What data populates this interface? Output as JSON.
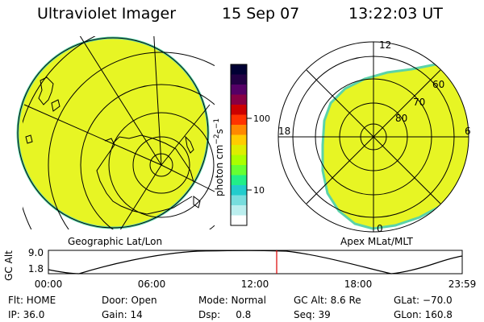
{
  "header": {
    "instrument": "Ultraviolet Imager",
    "date": "15 Sep 07",
    "time": "13:22:03 UT"
  },
  "panels": {
    "left_caption": "Geographic Lat/Lon",
    "right_caption": "Apex MLat/MLT"
  },
  "colorbar": {
    "unit_label": "photon cm",
    "unit_exp1": "−2",
    "unit_mid": "s",
    "unit_exp2": "−1",
    "tick_100": "100",
    "tick_10": "10",
    "scale": "log",
    "colors": [
      "#000033",
      "#220044",
      "#550066",
      "#880044",
      "#cc0000",
      "#ff3300",
      "#ff8800",
      "#ffcc00",
      "#ddee00",
      "#aaff00",
      "#66ff33",
      "#22ee88",
      "#22cccc",
      "#77dddd",
      "#bbeeee",
      "#ffffff"
    ],
    "fill_color": "#e7f524",
    "edge_color": "#5bd3a8"
  },
  "polar_labels": {
    "mlt_12": "12",
    "mlt_18": "18",
    "mlt_6": "6",
    "mlt_0": "0",
    "lat_60": "60",
    "lat_70": "70",
    "lat_80": "80"
  },
  "altitude_plot": {
    "ylabel": "GC Alt",
    "ytick_top": "9.0",
    "ytick_bottom": "1.8",
    "xticks": [
      "00:00",
      "06:00",
      "12:00",
      "18:00",
      "23:59"
    ],
    "current_time_marker_color": "#dd0000"
  },
  "status": {
    "flt": "Flt: HOME",
    "door": "Door: Open",
    "mode": "Mode: Normal",
    "gc_alt": "GC Alt: 8.6 Re",
    "glat": "GLat: −70.0",
    "ip": "IP: 36.0",
    "gain": "Gain: 14",
    "dsp": "Dsp:     0.8",
    "seq": "Seq: 39",
    "glon": "GLon: 160.8"
  }
}
